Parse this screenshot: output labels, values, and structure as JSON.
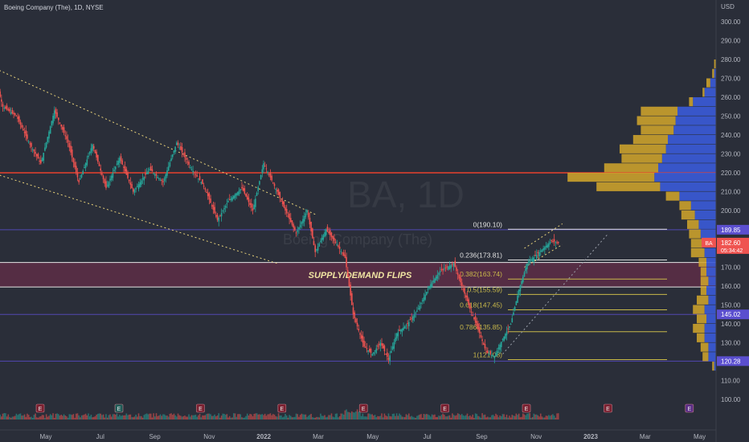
{
  "header": {
    "symbol_line": "Boeing Company (The), 1D, NYSE"
  },
  "watermark": {
    "ticker": "BA, 1D",
    "company": "Boeing Company (The)"
  },
  "colors": {
    "background": "#2a2e39",
    "up": "#26a69a",
    "down": "#ef5350",
    "resistance": "#e8412d",
    "zone": "#6d2c4a",
    "fib": "#c8b84a",
    "vp_up": "#3a5bd9",
    "vp_down": "#d4a72c",
    "channel": "#e8d27a",
    "level_line": "#5b4fcf"
  },
  "chart_data": {
    "type": "candlestick",
    "title": "Boeing Company (The), 1D, NYSE",
    "y_axis_unit": "USD",
    "ylim": [
      95,
      305
    ],
    "y_ticks": [
      100,
      110,
      120,
      130,
      140,
      150,
      160,
      170,
      180,
      190,
      200,
      210,
      220,
      230,
      240,
      250,
      260,
      270,
      280,
      290,
      300
    ],
    "x_tick_labels": [
      "May",
      "Jul",
      "Sep",
      "Nov",
      "2022",
      "Mar",
      "May",
      "Jul",
      "Sep",
      "Nov",
      "2023",
      "Mar",
      "May"
    ],
    "price_path_anchors": [
      {
        "month": 0.0,
        "price": 276
      },
      {
        "month": 0.4,
        "price": 255
      },
      {
        "month": 0.9,
        "price": 250
      },
      {
        "month": 1.4,
        "price": 235
      },
      {
        "month": 1.8,
        "price": 225
      },
      {
        "month": 2.3,
        "price": 253
      },
      {
        "month": 2.8,
        "price": 236
      },
      {
        "month": 3.2,
        "price": 215
      },
      {
        "month": 3.7,
        "price": 235
      },
      {
        "month": 4.2,
        "price": 212
      },
      {
        "month": 4.7,
        "price": 228
      },
      {
        "month": 5.2,
        "price": 210
      },
      {
        "month": 5.8,
        "price": 222
      },
      {
        "month": 6.3,
        "price": 215
      },
      {
        "month": 6.8,
        "price": 236
      },
      {
        "month": 7.3,
        "price": 223
      },
      {
        "month": 7.8,
        "price": 213
      },
      {
        "month": 8.3,
        "price": 195
      },
      {
        "month": 8.7,
        "price": 205
      },
      {
        "month": 9.2,
        "price": 212
      },
      {
        "month": 9.6,
        "price": 200
      },
      {
        "month": 10.0,
        "price": 225
      },
      {
        "month": 10.5,
        "price": 210
      },
      {
        "month": 10.8,
        "price": 200
      },
      {
        "month": 11.2,
        "price": 188
      },
      {
        "month": 11.6,
        "price": 200
      },
      {
        "month": 11.9,
        "price": 178
      },
      {
        "month": 12.3,
        "price": 190
      },
      {
        "month": 12.7,
        "price": 182
      },
      {
        "month": 13.0,
        "price": 175
      },
      {
        "month": 13.3,
        "price": 145
      },
      {
        "month": 13.7,
        "price": 128
      },
      {
        "month": 14.0,
        "price": 124
      },
      {
        "month": 14.3,
        "price": 130
      },
      {
        "month": 14.6,
        "price": 121
      },
      {
        "month": 14.9,
        "price": 135
      },
      {
        "month": 15.3,
        "price": 140
      },
      {
        "month": 15.7,
        "price": 148
      },
      {
        "month": 16.1,
        "price": 160
      },
      {
        "month": 16.5,
        "price": 168
      },
      {
        "month": 17.0,
        "price": 172
      },
      {
        "month": 17.3,
        "price": 160
      },
      {
        "month": 17.6,
        "price": 148
      },
      {
        "month": 17.9,
        "price": 137
      },
      {
        "month": 18.2,
        "price": 125
      },
      {
        "month": 18.5,
        "price": 123
      },
      {
        "month": 18.8,
        "price": 132
      },
      {
        "month": 19.1,
        "price": 140
      },
      {
        "month": 19.4,
        "price": 158
      },
      {
        "month": 19.7,
        "price": 172
      },
      {
        "month": 20.0,
        "price": 176
      },
      {
        "month": 20.3,
        "price": 180
      },
      {
        "month": 20.6,
        "price": 184
      },
      {
        "month": 20.9,
        "price": 182.6
      }
    ],
    "price_labels": [
      {
        "value": 189.85,
        "text": "189.85"
      },
      {
        "value": 182.6,
        "text": "182.60",
        "ticker": "BA",
        "countdown": "05:34:42"
      },
      {
        "value": 145.02,
        "text": "145.02"
      },
      {
        "value": 120.28,
        "text": "120.28"
      }
    ],
    "fibonacci": [
      {
        "value": 190.1,
        "label": "0(190.10)"
      },
      {
        "value": 173.81,
        "label": "0.236(173.81)"
      },
      {
        "value": 163.74,
        "label": "0.382(163.74)"
      },
      {
        "value": 155.6,
        "label": "0.5(155.59)"
      },
      {
        "value": 147.45,
        "label": "0.618(147.45)"
      },
      {
        "value": 135.85,
        "label": "0.786(135.85)"
      },
      {
        "value": 121.08,
        "label": "1(121.08)"
      }
    ],
    "horizontal_levels": [
      {
        "value": 220,
        "kind": "resistance"
      },
      {
        "value": 189.85,
        "kind": "level"
      },
      {
        "value": 145.02,
        "kind": "level"
      },
      {
        "value": 120.28,
        "kind": "level"
      }
    ],
    "supply_demand_zone": {
      "top": 172.5,
      "bottom": 159.5,
      "label": "SUPPLY/DEMAND FLIPS"
    },
    "volume_profile": [
      {
        "price_low": 115,
        "price_high": 120,
        "up": 1,
        "down": 1
      },
      {
        "price_low": 120,
        "price_high": 125,
        "up": 4,
        "down": 3
      },
      {
        "price_low": 125,
        "price_high": 130,
        "up": 4,
        "down": 4
      },
      {
        "price_low": 130,
        "price_high": 135,
        "up": 6,
        "down": 4
      },
      {
        "price_low": 135,
        "price_high": 140,
        "up": 6,
        "down": 6
      },
      {
        "price_low": 140,
        "price_high": 145,
        "up": 5,
        "down": 5
      },
      {
        "price_low": 145,
        "price_high": 150,
        "up": 6,
        "down": 6
      },
      {
        "price_low": 150,
        "price_high": 155,
        "up": 4,
        "down": 6
      },
      {
        "price_low": 155,
        "price_high": 160,
        "up": 5,
        "down": 3
      },
      {
        "price_low": 160,
        "price_high": 165,
        "up": 4,
        "down": 4
      },
      {
        "price_low": 165,
        "price_high": 170,
        "up": 5,
        "down": 3
      },
      {
        "price_low": 170,
        "price_high": 175,
        "up": 5,
        "down": 4
      },
      {
        "price_low": 175,
        "price_high": 180,
        "up": 6,
        "down": 7
      },
      {
        "price_low": 180,
        "price_high": 185,
        "up": 7,
        "down": 6
      },
      {
        "price_low": 185,
        "price_high": 190,
        "up": 8,
        "down": 6
      },
      {
        "price_low": 190,
        "price_high": 195,
        "up": 9,
        "down": 6
      },
      {
        "price_low": 195,
        "price_high": 200,
        "up": 11,
        "down": 7
      },
      {
        "price_low": 200,
        "price_high": 205,
        "up": 13,
        "down": 6
      },
      {
        "price_low": 205,
        "price_high": 210,
        "up": 19,
        "down": 7
      },
      {
        "price_low": 210,
        "price_high": 215,
        "up": 29,
        "down": 33
      },
      {
        "price_low": 215,
        "price_high": 220,
        "up": 32,
        "down": 45
      },
      {
        "price_low": 220,
        "price_high": 225,
        "up": 30,
        "down": 28
      },
      {
        "price_low": 225,
        "price_high": 230,
        "up": 28,
        "down": 21
      },
      {
        "price_low": 230,
        "price_high": 235,
        "up": 26,
        "down": 24
      },
      {
        "price_low": 235,
        "price_high": 240,
        "up": 25,
        "down": 18
      },
      {
        "price_low": 240,
        "price_high": 245,
        "up": 22,
        "down": 17
      },
      {
        "price_low": 245,
        "price_high": 250,
        "up": 21,
        "down": 20
      },
      {
        "price_low": 250,
        "price_high": 255,
        "up": 20,
        "down": 19
      },
      {
        "price_low": 255,
        "price_high": 260,
        "up": 12,
        "down": 2
      },
      {
        "price_low": 260,
        "price_high": 265,
        "up": 6,
        "down": 1
      },
      {
        "price_low": 265,
        "price_high": 270,
        "up": 3,
        "down": 2
      },
      {
        "price_low": 270,
        "price_high": 275,
        "up": 1,
        "down": 1
      },
      {
        "price_low": 275,
        "price_high": 280,
        "up": 0,
        "down": 1
      }
    ],
    "trend_channels": [
      {
        "name": "descending",
        "start": {
          "month": 0.0,
          "price": 276
        },
        "end": {
          "month": 11.9,
          "price": 198
        }
      },
      {
        "name": "descending",
        "start": {
          "month": 0.0,
          "price": 220
        },
        "end": {
          "month": 10.5,
          "price": 172
        }
      },
      {
        "name": "rising",
        "start": {
          "month": 19.6,
          "price": 180
        },
        "end": {
          "month": 21.0,
          "price": 193
        }
      },
      {
        "name": "rising",
        "start": {
          "month": 19.6,
          "price": 170
        },
        "end": {
          "month": 21.0,
          "price": 182
        }
      },
      {
        "name": "projection",
        "start": {
          "month": 18.8,
          "price": 124
        },
        "end": {
          "month": 22.7,
          "price": 188
        }
      }
    ],
    "event_markers": [
      {
        "month": 0.0,
        "label": "E"
      },
      {
        "month": 2.9,
        "label": "E"
      },
      {
        "month": 5.9,
        "label": "E"
      },
      {
        "month": 8.9,
        "label": "E"
      },
      {
        "month": 11.9,
        "label": "E"
      },
      {
        "month": 14.9,
        "label": "E"
      },
      {
        "month": 17.9,
        "label": "E"
      },
      {
        "month": 20.9,
        "label": "E"
      },
      {
        "month": 23.9,
        "label": "E"
      }
    ]
  }
}
